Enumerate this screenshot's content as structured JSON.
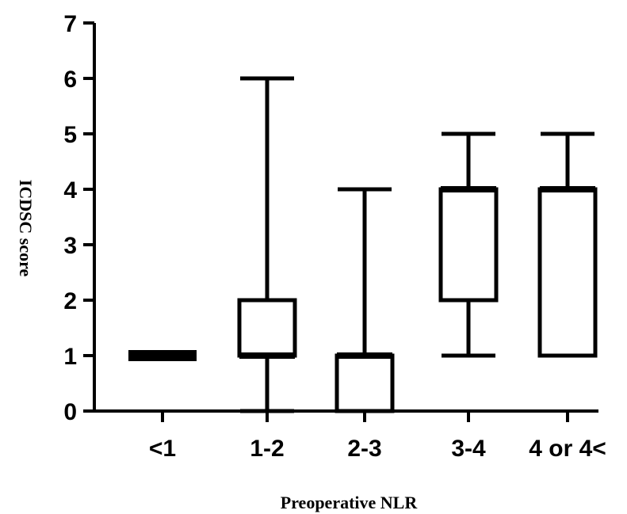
{
  "chart_data": {
    "type": "box",
    "xlabel": "Preoperative NLR",
    "ylabel": "ICDSC score",
    "ylim": [
      0,
      7
    ],
    "yticks": [
      0,
      1,
      2,
      3,
      4,
      5,
      6,
      7
    ],
    "categories": [
      "<1",
      "1-2",
      "2-3",
      "3-4",
      "4 or 4<"
    ],
    "boxes": [
      {
        "category": "<1",
        "min": 1,
        "q1": 1,
        "median": 1,
        "q3": 1,
        "max": 1
      },
      {
        "category": "1-2",
        "min": 0,
        "q1": 1,
        "median": 1,
        "q3": 2,
        "max": 6
      },
      {
        "category": "2-3",
        "min": 0,
        "q1": 0,
        "median": 1,
        "q3": 1,
        "max": 4
      },
      {
        "category": "3-4",
        "min": 1,
        "q1": 2,
        "median": 4,
        "q3": 4,
        "max": 5
      },
      {
        "category": "4 or 4<",
        "min": 1,
        "q1": 1,
        "median": 4,
        "q3": 4,
        "max": 5
      }
    ],
    "grid": false,
    "legend": "none"
  },
  "style": {
    "stroke_color": "#000000",
    "background": "#ffffff"
  }
}
